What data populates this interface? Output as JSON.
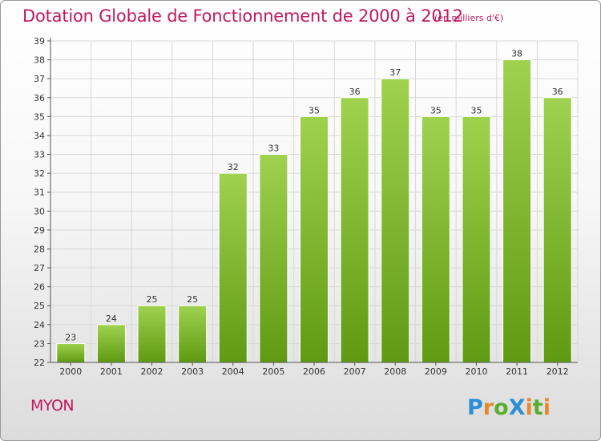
{
  "header": {
    "title": "Dotation Globale de Fonctionnement de 2000 à 2012",
    "unit": "(en milliers d'€)"
  },
  "footer": {
    "commune": "MYON",
    "logo_text": "ProXiti"
  },
  "colors": {
    "title": "#c0185f",
    "bar_top": "#9fd24f",
    "bar_bottom": "#5f9a12",
    "grid": "#d8d8d8",
    "axis": "#555555"
  },
  "chart_data": {
    "type": "bar",
    "title": "Dotation Globale de Fonctionnement de 2000 à 2012",
    "subtitle": "(en milliers d'€)",
    "xlabel": "",
    "ylabel": "",
    "categories": [
      "2000",
      "2001",
      "2002",
      "2003",
      "2004",
      "2005",
      "2006",
      "2007",
      "2008",
      "2009",
      "2010",
      "2011",
      "2012"
    ],
    "values": [
      23,
      24,
      25,
      25,
      32,
      33,
      35,
      36,
      37,
      35,
      35,
      38,
      36
    ],
    "ylim": [
      22,
      39
    ],
    "yticks": [
      22,
      23,
      24,
      25,
      26,
      27,
      28,
      29,
      30,
      31,
      32,
      33,
      34,
      35,
      36,
      37,
      38,
      39
    ],
    "grid": true,
    "data_labels": true
  }
}
